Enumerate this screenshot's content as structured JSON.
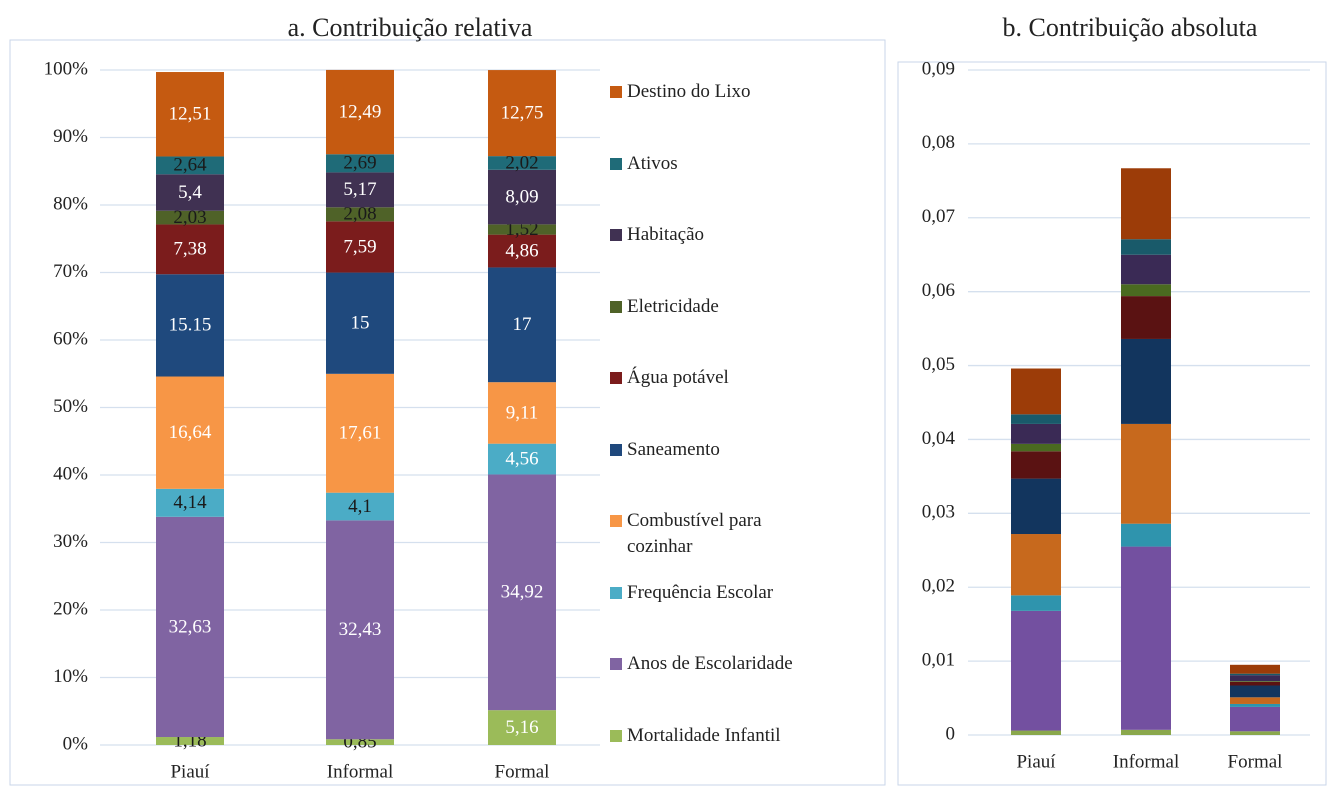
{
  "chart_data": [
    {
      "type": "bar",
      "stacked": true,
      "title": "a. Contribuição relativa",
      "categories": [
        "Piauí",
        "Informal",
        "Formal"
      ],
      "series": [
        {
          "name": "Mortalidade Infantil",
          "color": "#9bbb59",
          "values": [
            1.18,
            0.85,
            5.16
          ],
          "value_labels": [
            "1,18",
            "0,85",
            "5,16"
          ]
        },
        {
          "name": "Anos de Escolaridade",
          "color": "#8064a2",
          "values": [
            32.63,
            32.43,
            34.92
          ],
          "value_labels": [
            "32,63",
            "32,43",
            "34,92"
          ]
        },
        {
          "name": "Frequência Escolar",
          "color": "#4bacc6",
          "values": [
            4.14,
            4.1,
            4.56
          ],
          "value_labels": [
            "4,14",
            "4,1",
            "4,56"
          ]
        },
        {
          "name": "Combustível para cozinhar",
          "color": "#f79646",
          "values": [
            16.64,
            17.61,
            9.11
          ],
          "value_labels": [
            "16,64",
            "17,61",
            "9,11"
          ]
        },
        {
          "name": "Saneamento",
          "color": "#1f497d",
          "values": [
            15.15,
            15,
            17
          ]
        },
        {
          "name": "Água potável",
          "color": "#7b1c1c",
          "values": [
            7.38,
            7.59,
            4.86
          ],
          "value_labels": [
            "7,38",
            "7,59",
            "4,86"
          ]
        },
        {
          "name": "Eletricidade",
          "color": "#4f6228",
          "values": [
            2.03,
            2.08,
            1.52
          ],
          "value_labels": [
            "2,03",
            "2,08",
            "1,52"
          ]
        },
        {
          "name": "Habitação",
          "color": "#403152",
          "values": [
            5.4,
            5.17,
            8.09
          ],
          "value_labels": [
            "5,4",
            "5,17",
            "8,09"
          ]
        },
        {
          "name": "Ativos",
          "color": "#1f6b78",
          "values": [
            2.64,
            2.69,
            2.02
          ],
          "value_labels": [
            "2,64",
            "2,69",
            "2,02"
          ]
        },
        {
          "name": "Destino do Lixo",
          "color": "#c55a11",
          "values": [
            12.51,
            12.49,
            12.75
          ],
          "value_labels": [
            "12,51",
            "12,49",
            "12,75"
          ]
        }
      ],
      "ylim": [
        0,
        100
      ],
      "yticks": [
        {
          "value": 0,
          "label": "0%"
        },
        {
          "value": 10,
          "label": "10%"
        },
        {
          "value": 20,
          "label": "20%"
        },
        {
          "value": 30,
          "label": "30%"
        },
        {
          "value": 40,
          "label": "40%"
        },
        {
          "value": 50,
          "label": "50%"
        },
        {
          "value": 60,
          "label": "60%"
        },
        {
          "value": 70,
          "label": "70%"
        },
        {
          "value": 80,
          "label": "80%"
        },
        {
          "value": 90,
          "label": "90%"
        },
        {
          "value": 100,
          "label": "100%"
        }
      ],
      "grid": true,
      "legend": "right"
    },
    {
      "type": "bar",
      "stacked": true,
      "title": "b. Contribuição absoluta",
      "categories": [
        "Piauí",
        "Informal",
        "Formal"
      ],
      "series": [
        {
          "color": "#8aa84c",
          "values": [
            0.0006,
            0.0007,
            0.0005
          ]
        },
        {
          "color": "#7350a0",
          "values": [
            0.0162,
            0.0248,
            0.0033
          ]
        },
        {
          "color": "#2f94ad",
          "values": [
            0.0021,
            0.0031,
            0.0004
          ]
        },
        {
          "color": "#c7691d",
          "values": [
            0.0083,
            0.0135,
            0.0009
          ]
        },
        {
          "color": "#12355e",
          "values": [
            0.0075,
            0.0115,
            0.0016
          ]
        },
        {
          "color": "#5a1212",
          "values": [
            0.0037,
            0.0058,
            0.0005
          ]
        },
        {
          "color": "#4a6a20",
          "values": [
            0.001,
            0.0016,
            0.0001
          ]
        },
        {
          "color": "#3a2a55",
          "values": [
            0.0027,
            0.004,
            0.0008
          ]
        },
        {
          "color": "#195a6a",
          "values": [
            0.0013,
            0.0021,
            0.0002
          ]
        },
        {
          "color": "#9c3c08",
          "values": [
            0.0062,
            0.0096,
            0.0012
          ]
        }
      ],
      "ylim": [
        0,
        0.09
      ],
      "yticks": [
        0,
        {
          "value": 0.01,
          "label": "0,01"
        },
        {
          "value": 0.02,
          "label": "0,02"
        },
        {
          "value": 0.03,
          "label": "0,03"
        },
        {
          "value": 0.04,
          "label": "0,04"
        },
        {
          "value": 0.05,
          "label": "0,05"
        },
        {
          "value": 0.06,
          "label": "0,06"
        },
        {
          "value": 0.07,
          "label": "0,07"
        },
        {
          "value": 0.08,
          "label": "0,08"
        },
        {
          "value": 0.09,
          "label": "0,09"
        }
      ],
      "grid": true
    }
  ]
}
